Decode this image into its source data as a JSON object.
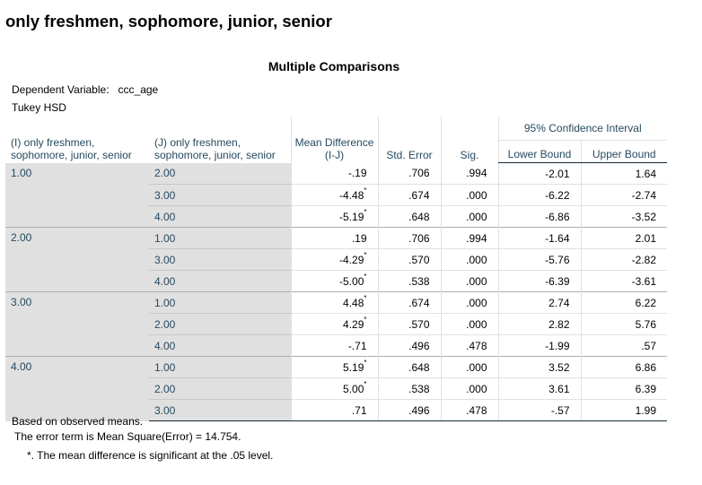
{
  "section_title": "only freshmen, sophomore, junior, senior",
  "table_title": "Multiple Comparisons",
  "dependent_variable_label": "Dependent Variable:",
  "dependent_variable_value": "ccc_age",
  "method": "Tukey HSD",
  "headers": {
    "i": "(I) only freshmen, sophomore, junior, senior",
    "j": "(J) only freshmen, sophomore, junior, senior",
    "mean_diff": "Mean Difference (I-J)",
    "std_error": "Std. Error",
    "sig": "Sig.",
    "ci": "95% Confidence Interval",
    "lower": "Lower Bound",
    "upper": "Upper Bound"
  },
  "groups": [
    {
      "i": "1.00",
      "rows": [
        {
          "j": "2.00",
          "mean": "-.19",
          "star": false,
          "se": ".706",
          "sig": ".994",
          "lb": "-2.01",
          "ub": "1.64"
        },
        {
          "j": "3.00",
          "mean": "-4.48",
          "star": true,
          "se": ".674",
          "sig": ".000",
          "lb": "-6.22",
          "ub": "-2.74"
        },
        {
          "j": "4.00",
          "mean": "-5.19",
          "star": true,
          "se": ".648",
          "sig": ".000",
          "lb": "-6.86",
          "ub": "-3.52"
        }
      ]
    },
    {
      "i": "2.00",
      "rows": [
        {
          "j": "1.00",
          "mean": ".19",
          "star": false,
          "se": ".706",
          "sig": ".994",
          "lb": "-1.64",
          "ub": "2.01"
        },
        {
          "j": "3.00",
          "mean": "-4.29",
          "star": true,
          "se": ".570",
          "sig": ".000",
          "lb": "-5.76",
          "ub": "-2.82"
        },
        {
          "j": "4.00",
          "mean": "-5.00",
          "star": true,
          "se": ".538",
          "sig": ".000",
          "lb": "-6.39",
          "ub": "-3.61"
        }
      ]
    },
    {
      "i": "3.00",
      "rows": [
        {
          "j": "1.00",
          "mean": "4.48",
          "star": true,
          "se": ".674",
          "sig": ".000",
          "lb": "2.74",
          "ub": "6.22"
        },
        {
          "j": "2.00",
          "mean": "4.29",
          "star": true,
          "se": ".570",
          "sig": ".000",
          "lb": "2.82",
          "ub": "5.76"
        },
        {
          "j": "4.00",
          "mean": "-.71",
          "star": false,
          "se": ".496",
          "sig": ".478",
          "lb": "-1.99",
          "ub": ".57"
        }
      ]
    },
    {
      "i": "4.00",
      "rows": [
        {
          "j": "1.00",
          "mean": "5.19",
          "star": true,
          "se": ".648",
          "sig": ".000",
          "lb": "3.52",
          "ub": "6.86"
        },
        {
          "j": "2.00",
          "mean": "5.00",
          "star": true,
          "se": ".538",
          "sig": ".000",
          "lb": "3.61",
          "ub": "6.39"
        },
        {
          "j": "3.00",
          "mean": ".71",
          "star": false,
          "se": ".496",
          "sig": ".478",
          "lb": "-.57",
          "ub": "1.99"
        }
      ]
    }
  ],
  "star_marker": "*",
  "footnotes": [
    "Based on observed means.",
    "The error term is Mean Square(Error) = 14.754.",
    "*. The mean difference is significant at the .05 level."
  ]
}
